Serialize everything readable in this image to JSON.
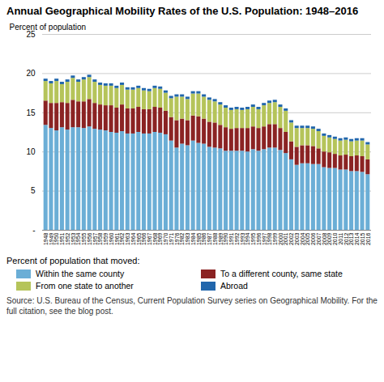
{
  "chart_data": {
    "type": "bar",
    "title": "Annual Geographical Mobility Rates of the U.S. Population: 1948–2016",
    "y_label": "Percent of population",
    "annotations": [
      "Percent of population that moved:",
      "Source: U.S. Bureau of the Census, Current Population Survey series on Geographical Mobility. For the full citation, see the blog post."
    ],
    "stacked": true,
    "grid": true,
    "categories": [
      "1948",
      "1949",
      "1950",
      "1951",
      "1952",
      "1953",
      "1954",
      "1955",
      "1956",
      "1957",
      "1958",
      "1959",
      "1960",
      "1961",
      "1962",
      "1963",
      "1964",
      "1965",
      "1966",
      "1967",
      "1968",
      "1969",
      "1970",
      "1971",
      "1976",
      "1982",
      "1983",
      "1984",
      "1985",
      "1986",
      "1987",
      "1988",
      "1989",
      "1990",
      "1991",
      "1992",
      "1993",
      "1994",
      "1995",
      "1996",
      "1997",
      "1998",
      "1999",
      "2000",
      "2001",
      "2002",
      "2003",
      "2004",
      "2005",
      "2006",
      "2007",
      "2008",
      "2009",
      "2010",
      "2011",
      "2012",
      "2013",
      "2014",
      "2015",
      "2016"
    ],
    "series": [
      {
        "name": "Within the same county",
        "color": "#6baed6",
        "values": [
          13.4,
          13.0,
          12.7,
          13.1,
          12.8,
          13.1,
          13.1,
          13.0,
          13.2,
          12.9,
          12.8,
          12.7,
          12.5,
          12.4,
          12.6,
          12.3,
          12.3,
          12.5,
          12.3,
          12.3,
          12.5,
          12.4,
          12.2,
          11.4,
          10.5,
          11.0,
          10.8,
          11.4,
          11.1,
          11.0,
          10.6,
          10.5,
          10.4,
          10.1,
          10.1,
          10.1,
          10.1,
          10.0,
          10.3,
          10.1,
          10.3,
          10.5,
          10.5,
          10.2,
          9.8,
          9.0,
          8.3,
          8.5,
          8.5,
          8.4,
          8.4,
          8.0,
          7.9,
          7.9,
          7.7,
          7.7,
          7.5,
          7.5,
          7.4,
          7.1
        ]
      },
      {
        "name": "To a different county, same state",
        "color": "#8b2323",
        "values": [
          3.1,
          3.2,
          3.5,
          3.2,
          3.4,
          3.5,
          3.3,
          3.4,
          3.5,
          3.3,
          3.2,
          3.2,
          3.4,
          3.2,
          3.4,
          3.2,
          3.2,
          3.2,
          3.1,
          3.1,
          3.2,
          3.2,
          3.0,
          3.0,
          3.5,
          3.2,
          3.2,
          3.2,
          3.4,
          3.2,
          3.2,
          3.2,
          3.0,
          3.0,
          2.8,
          2.9,
          2.9,
          3.0,
          2.9,
          2.9,
          2.9,
          3.0,
          3.0,
          2.8,
          2.7,
          2.3,
          2.3,
          2.3,
          2.3,
          2.3,
          2.0,
          2.0,
          2.0,
          1.8,
          1.8,
          1.9,
          1.9,
          2.0,
          2.0,
          1.9
        ]
      },
      {
        "name": "From one state to another",
        "color": "#b5c45a",
        "values": [
          2.5,
          2.5,
          2.8,
          2.3,
          2.7,
          2.8,
          2.5,
          2.8,
          2.8,
          2.7,
          2.5,
          2.5,
          2.5,
          2.5,
          2.5,
          2.4,
          2.4,
          2.4,
          2.4,
          2.3,
          2.4,
          2.4,
          2.3,
          2.4,
          3.0,
          2.8,
          2.7,
          2.8,
          2.9,
          2.8,
          2.8,
          2.7,
          2.6,
          2.5,
          2.4,
          2.4,
          2.3,
          2.4,
          2.5,
          2.4,
          2.7,
          2.7,
          2.8,
          2.7,
          2.7,
          2.4,
          2.4,
          2.2,
          2.2,
          2.2,
          2.2,
          2.0,
          1.9,
          1.9,
          1.9,
          1.9,
          1.9,
          1.9,
          2.0,
          1.9
        ]
      },
      {
        "name": "Abroad",
        "color": "#2166ac",
        "values": [
          0.3,
          0.3,
          0.3,
          0.3,
          0.3,
          0.3,
          0.3,
          0.3,
          0.3,
          0.3,
          0.3,
          0.3,
          0.3,
          0.3,
          0.3,
          0.3,
          0.3,
          0.3,
          0.3,
          0.3,
          0.3,
          0.3,
          0.3,
          0.3,
          0.3,
          0.3,
          0.3,
          0.3,
          0.3,
          0.3,
          0.3,
          0.3,
          0.3,
          0.3,
          0.3,
          0.3,
          0.3,
          0.3,
          0.3,
          0.3,
          0.3,
          0.3,
          0.3,
          0.3,
          0.3,
          0.3,
          0.3,
          0.3,
          0.3,
          0.3,
          0.3,
          0.3,
          0.3,
          0.3,
          0.3,
          0.3,
          0.3,
          0.3,
          0.3,
          0.3
        ]
      }
    ],
    "ylim": [
      0,
      25
    ],
    "yticks": [
      {
        "value": 0,
        "label": "-"
      },
      5,
      10,
      15,
      20,
      25
    ]
  }
}
